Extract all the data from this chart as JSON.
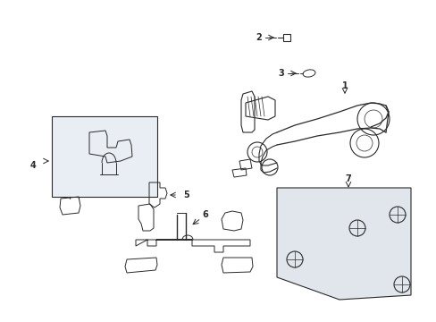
{
  "background_color": "#ffffff",
  "line_color": "#2a2a2a",
  "part4_box_fill": "#e8eef4",
  "part7_fill": "#e0e6ec",
  "fig_width": 4.89,
  "fig_height": 3.6,
  "dpi": 100
}
